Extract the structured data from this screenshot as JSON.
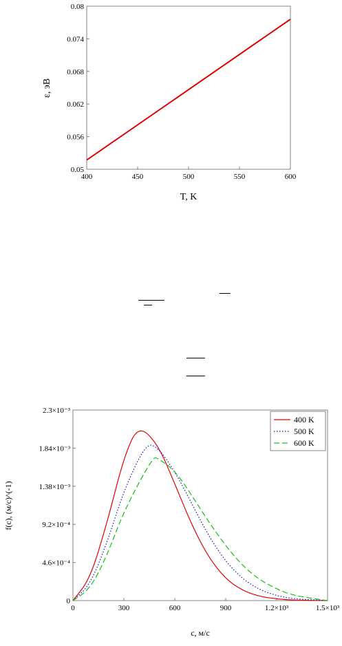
{
  "chart_data": [
    {
      "type": "line",
      "title": "",
      "xlabel": "T, K",
      "ylabel": "ε, эВ",
      "xlim": [
        400,
        600
      ],
      "ylim": [
        0.05,
        0.08
      ],
      "x_ticks": [
        "400",
        "450",
        "500",
        "550",
        "600"
      ],
      "y_ticks": [
        "0.05",
        "0.056",
        "0.062",
        "0.068",
        "0.074",
        "0.08"
      ],
      "grid": false,
      "series": [
        {
          "color": "#e00000",
          "x": [
            400,
            600
          ],
          "y": [
            0.0517,
            0.0776
          ]
        }
      ]
    },
    {
      "type": "line",
      "title": "",
      "xlabel": "c, м/с",
      "ylabel": "f(c), (м/с)^(-1)",
      "xlim": [
        0,
        1500
      ],
      "ylim": [
        0,
        0.0023
      ],
      "x_ticks": [
        "0",
        "300",
        "600",
        "900",
        "1.2×10³",
        "1.5×10³"
      ],
      "y_ticks": [
        "0",
        "4.6×10⁻⁴",
        "9.2×10⁻⁴",
        "1.38×10⁻³",
        "1.84×10⁻³",
        "2.3×10⁻³"
      ],
      "legend_position": "top-right",
      "grid": false,
      "series": [
        {
          "name": "400 K",
          "color": "#e00000",
          "style": "solid",
          "x": [
            0,
            100,
            200,
            300,
            385,
            500,
            600,
            700,
            800,
            900,
            1000,
            1100,
            1200,
            1300,
            1500
          ],
          "y": [
            0,
            0.00026,
            0.00093,
            0.00173,
            0.00212,
            0.00189,
            0.00141,
            0.00091,
            0.00052,
            0.00026,
            0.00012,
            5e-05,
            2e-05,
            5e-06,
            0
          ]
        },
        {
          "name": "500 K",
          "color": "#1010c0",
          "style": "dotted",
          "x": [
            0,
            100,
            200,
            300,
            430,
            500,
            600,
            700,
            800,
            900,
            1000,
            1100,
            1200,
            1300,
            1500
          ],
          "y": [
            0,
            0.00019,
            0.00069,
            0.00133,
            0.0019,
            0.00185,
            0.00156,
            0.00117,
            0.00078,
            0.00047,
            0.00026,
            0.00013,
            6e-05,
            2e-05,
            0
          ]
        },
        {
          "name": "600 K",
          "color": "#10c010",
          "style": "dashed",
          "x": [
            0,
            100,
            200,
            300,
            470,
            500,
            600,
            700,
            800,
            900,
            1000,
            1100,
            1200,
            1300,
            1500
          ],
          "y": [
            0,
            0.00014,
            0.00054,
            0.00108,
            0.00173,
            0.00172,
            0.00157,
            0.00127,
            0.00095,
            0.00066,
            0.00042,
            0.00025,
            0.00014,
            6e-05,
            0
          ]
        }
      ]
    }
  ]
}
